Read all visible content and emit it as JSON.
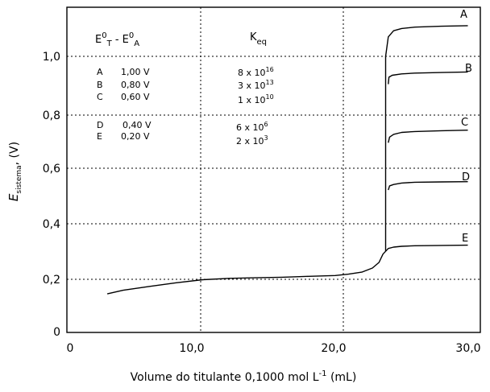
{
  "chart_data": {
    "type": "line",
    "xlabel": {
      "text": "Volume do titulante 0,1000 mol L",
      "sup": "-1",
      "tail": " (mL)"
    },
    "ylabel": {
      "E": "E",
      "sub": "sistema",
      "tail": ", (V)"
    },
    "xlim": [
      0,
      30
    ],
    "ylim": [
      0,
      1.15
    ],
    "x_ticks": [
      {
        "v": 0,
        "label": "0"
      },
      {
        "v": 10,
        "label": "10,0"
      },
      {
        "v": 20,
        "label": "20,0"
      },
      {
        "v": 30,
        "label": "30,0"
      }
    ],
    "y_ticks": [
      {
        "v": 0,
        "label": "0"
      },
      {
        "v": 0.2,
        "label": "0,2"
      },
      {
        "v": 0.4,
        "label": "0,4"
      },
      {
        "v": 0.6,
        "label": "0,6"
      },
      {
        "v": 0.8,
        "label": "0,8"
      },
      {
        "v": 1.0,
        "label": "1,0"
      }
    ],
    "grid": "dotted vertical at 10 and 20",
    "pre_equivalence": {
      "x": [
        2.8,
        4,
        6,
        8,
        10,
        12,
        14,
        16,
        18,
        20,
        21,
        22,
        22.8,
        23.3,
        23.6,
        23.8
      ],
      "y": [
        0.147,
        0.16,
        0.174,
        0.187,
        0.198,
        0.203,
        0.205,
        0.207,
        0.21,
        0.213,
        0.218,
        0.225,
        0.24,
        0.26,
        0.29,
        0.3
      ]
    },
    "series": [
      {
        "name": "A",
        "x": [
          23.8,
          23.8,
          24.0,
          24.4,
          25,
          26,
          28,
          30
        ],
        "y": [
          0.3,
          1.0,
          1.07,
          1.092,
          1.1,
          1.105,
          1.108,
          1.11
        ]
      },
      {
        "name": "B",
        "x": [
          24.0,
          24.05,
          24.3,
          25,
          26,
          28,
          30
        ],
        "y": [
          0.9,
          0.925,
          0.932,
          0.937,
          0.94,
          0.942,
          0.944
        ]
      },
      {
        "name": "C",
        "x": [
          24.0,
          24.1,
          24.4,
          25,
          26,
          28,
          30
        ],
        "y": [
          0.69,
          0.71,
          0.72,
          0.727,
          0.73,
          0.733,
          0.735
        ]
      },
      {
        "name": "D",
        "x": [
          24.0,
          24.1,
          24.4,
          25,
          26,
          28,
          30
        ],
        "y": [
          0.52,
          0.535,
          0.54,
          0.545,
          0.548,
          0.549,
          0.55
        ]
      },
      {
        "name": "E",
        "x": [
          23.8,
          24.0,
          24.4,
          25,
          26,
          28,
          30
        ],
        "y": [
          0.3,
          0.31,
          0.315,
          0.318,
          0.32,
          0.321,
          0.322
        ]
      }
    ],
    "annotation_headers": {
      "e": "E",
      "e_sup": "0",
      "sub_t": "T",
      "dash": " - ",
      "sub_a": "A",
      "k": "K",
      "k_sub": "eq"
    },
    "annotations": [
      {
        "label": "A",
        "e": "1,00  V",
        "k": "8 x 10",
        "k_exp": "16"
      },
      {
        "label": "B",
        "e": "0,80  V",
        "k": "3 x 10",
        "k_exp": "13"
      },
      {
        "label": "C",
        "e": "0,60  V",
        "k": "1 x 10",
        "k_exp": "10"
      },
      {
        "label": "D",
        "e": "0,40  V",
        "k": "6 x 10",
        "k_exp": "6"
      },
      {
        "label": "E",
        "e": "0,20  V",
        "k": "2 x 10",
        "k_exp": "3"
      }
    ],
    "curve_labels": [
      "A",
      "B",
      "C",
      "D",
      "E"
    ]
  }
}
